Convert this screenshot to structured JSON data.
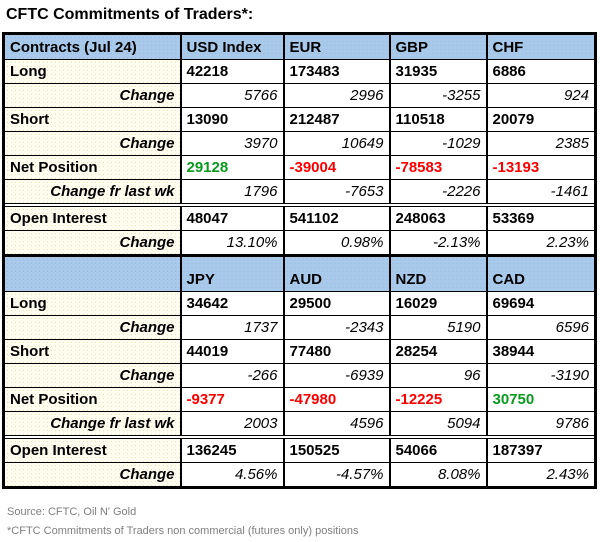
{
  "title": "CFTC Commitments of Traders*:",
  "colors": {
    "positive": "#0a9a1e",
    "negative": "#fc0000",
    "header_bg": "#a9c9ea",
    "label_bg": "#fffdf0",
    "border": "#000000",
    "footer_text": "#7f7f7f"
  },
  "table": {
    "sections": [
      {
        "header": [
          "Contracts (Jul 24)",
          "USD Index",
          "EUR",
          "GBP",
          "CHF"
        ],
        "rows": [
          {
            "label": "Long",
            "type": "main",
            "values": [
              "42218",
              "173483",
              "31935",
              "6886"
            ]
          },
          {
            "label": "Change",
            "type": "change",
            "values": [
              "5766",
              "2996",
              "-3255",
              "924"
            ]
          },
          {
            "label": "Short",
            "type": "main",
            "values": [
              "13090",
              "212487",
              "110518",
              "20079"
            ]
          },
          {
            "label": "Change",
            "type": "change",
            "values": [
              "3970",
              "10649",
              "-1029",
              "2385"
            ]
          },
          {
            "label": "Net Position",
            "type": "net",
            "values": [
              "29128",
              "-39004",
              "-78583",
              "-13193"
            ]
          },
          {
            "label": "Change fr last wk",
            "type": "change",
            "values": [
              "1796",
              "-7653",
              "-2226",
              "-1461"
            ]
          },
          {
            "label": "Open Interest",
            "type": "main",
            "spacer_before": true,
            "values": [
              "48047",
              "541102",
              "248063",
              "53369"
            ]
          },
          {
            "label": "Change",
            "type": "change",
            "values": [
              "13.10%",
              "0.98%",
              "-2.13%",
              "2.23%"
            ]
          }
        ]
      },
      {
        "header": [
          "",
          "JPY",
          "AUD",
          "NZD",
          "CAD"
        ],
        "rows": [
          {
            "label": "Long",
            "type": "main",
            "values": [
              "34642",
              "29500",
              "16029",
              "69694"
            ]
          },
          {
            "label": "Change",
            "type": "change",
            "values": [
              "1737",
              "-2343",
              "5190",
              "6596"
            ]
          },
          {
            "label": "Short",
            "type": "main",
            "values": [
              "44019",
              "77480",
              "28254",
              "38944"
            ]
          },
          {
            "label": "Change",
            "type": "change",
            "values": [
              "-266",
              "-6939",
              "96",
              "-3190"
            ]
          },
          {
            "label": "Net Position",
            "type": "net",
            "values": [
              "-9377",
              "-47980",
              "-12225",
              "30750"
            ]
          },
          {
            "label": "Change fr last wk",
            "type": "change",
            "values": [
              "2003",
              "4596",
              "5094",
              "9786"
            ]
          },
          {
            "label": "Open Interest",
            "type": "main",
            "spacer_before": true,
            "values": [
              "136245",
              "150525",
              "54066",
              "187397"
            ]
          },
          {
            "label": "Change",
            "type": "change",
            "values": [
              "4.56%",
              "-4.57%",
              "8.08%",
              "2.43%"
            ]
          }
        ]
      }
    ]
  },
  "footer": {
    "source": "Source: CFTC, Oil N' Gold",
    "footnote": "*CFTC Commitments of Traders non commercial (futures only) positions"
  },
  "chart_data": {
    "type": "table",
    "title": "CFTC Commitments of Traders*:",
    "sections": [
      {
        "columns": [
          "Contracts (Jul 24)",
          "USD Index",
          "EUR",
          "GBP",
          "CHF"
        ],
        "rows": [
          [
            "Long",
            42218,
            173483,
            31935,
            6886
          ],
          [
            "Change",
            5766,
            2996,
            -3255,
            924
          ],
          [
            "Short",
            13090,
            212487,
            110518,
            20079
          ],
          [
            "Change",
            3970,
            10649,
            -1029,
            2385
          ],
          [
            "Net Position",
            29128,
            -39004,
            -78583,
            -13193
          ],
          [
            "Change fr last wk",
            1796,
            -7653,
            -2226,
            -1461
          ],
          [
            "Open Interest",
            48047,
            541102,
            248063,
            53369
          ],
          [
            "Change %",
            "13.10%",
            "0.98%",
            "-2.13%",
            "2.23%"
          ]
        ]
      },
      {
        "columns": [
          "",
          "JPY",
          "AUD",
          "NZD",
          "CAD"
        ],
        "rows": [
          [
            "Long",
            34642,
            29500,
            16029,
            69694
          ],
          [
            "Change",
            1737,
            -2343,
            5190,
            6596
          ],
          [
            "Short",
            44019,
            77480,
            28254,
            38944
          ],
          [
            "Change",
            -266,
            -6939,
            96,
            -3190
          ],
          [
            "Net Position",
            -9377,
            -47980,
            -12225,
            30750
          ],
          [
            "Change fr last wk",
            2003,
            4596,
            5094,
            9786
          ],
          [
            "Open Interest",
            136245,
            150525,
            54066,
            187397
          ],
          [
            "Change %",
            "4.56%",
            "-4.57%",
            "8.08%",
            "2.43%"
          ]
        ]
      }
    ],
    "notes": [
      "Source: CFTC, Oil N' Gold",
      "*CFTC Commitments of Traders non commercial (futures only) positions"
    ],
    "value_color_rule": "Net Position values: green if positive, red if negative"
  }
}
